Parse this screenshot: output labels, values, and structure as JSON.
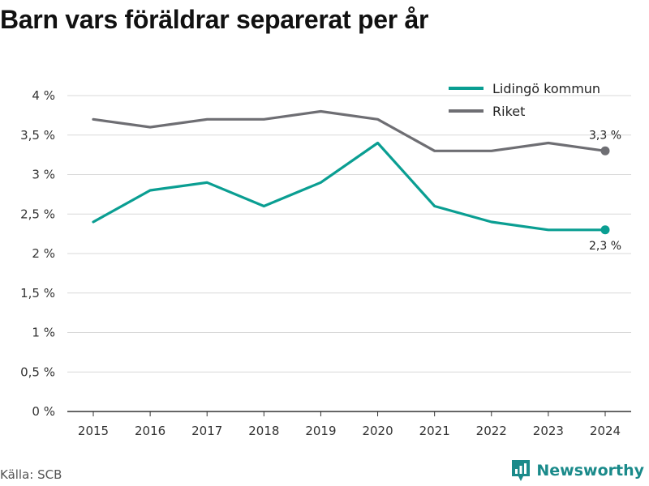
{
  "title": "Barn vars föräldrar separerat per år",
  "source": "Källa: SCB",
  "brand": {
    "name": "Newsworthy",
    "icon": "newsworthy-logo-icon"
  },
  "colors": {
    "lidingo": "#0a9e92",
    "riket": "#6e6e73",
    "grid": "#d9d9d9",
    "axis": "#333333"
  },
  "chart_data": {
    "type": "line",
    "x": [
      "2015",
      "2016",
      "2017",
      "2018",
      "2019",
      "2020",
      "2021",
      "2022",
      "2023",
      "2024"
    ],
    "series": [
      {
        "name": "Lidingö kommun",
        "values": [
          2.4,
          2.8,
          2.9,
          2.6,
          2.9,
          3.4,
          2.6,
          2.4,
          2.3,
          2.3
        ],
        "end_label": "2,3 %"
      },
      {
        "name": "Riket",
        "values": [
          3.7,
          3.6,
          3.7,
          3.7,
          3.8,
          3.7,
          3.3,
          3.3,
          3.4,
          3.3
        ],
        "end_label": "3,3 %"
      }
    ],
    "yticks": [
      0,
      0.5,
      1,
      1.5,
      2,
      2.5,
      3,
      3.5,
      4
    ],
    "ytick_labels": [
      "0 %",
      "0,5 %",
      "1 %",
      "1,5 %",
      "2 %",
      "2,5 %",
      "3 %",
      "3,5 %",
      "4 %"
    ],
    "ylim": [
      0,
      4
    ],
    "xlabel": "",
    "ylabel": "",
    "grid": true,
    "legend": "top-right"
  }
}
